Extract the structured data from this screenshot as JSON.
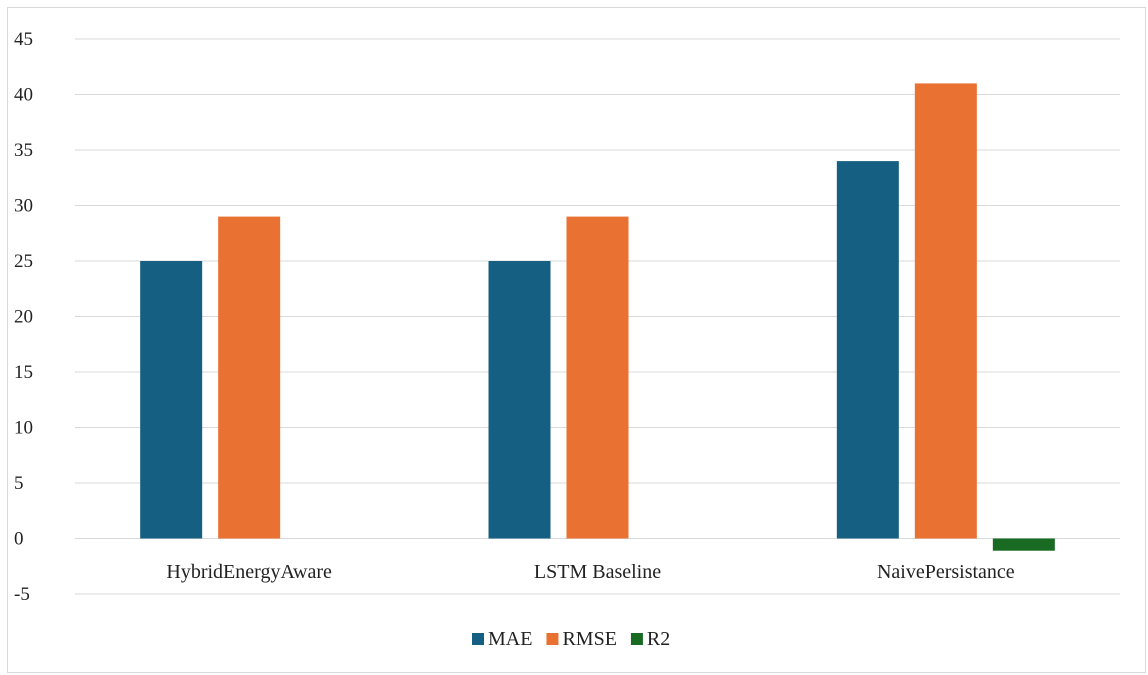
{
  "chart_data": {
    "type": "bar",
    "title": "",
    "xlabel": "",
    "ylabel": "",
    "categories": [
      "HybridEnergyAware",
      "LSTM Baseline",
      "NaivePersistance"
    ],
    "series": [
      {
        "name": "MAE",
        "color": "#156082",
        "values": [
          25,
          25,
          34
        ]
      },
      {
        "name": "RMSE",
        "color": "#E97132",
        "values": [
          29,
          29,
          41
        ]
      },
      {
        "name": "R2",
        "color": "#196B24",
        "values": [
          0,
          0,
          -1.1
        ]
      }
    ],
    "ylim": [
      -5,
      45
    ],
    "yticks": [
      45,
      40,
      35,
      30,
      25,
      20,
      15,
      10,
      5,
      0,
      -5
    ],
    "grid": true,
    "legend_position": "bottom"
  }
}
